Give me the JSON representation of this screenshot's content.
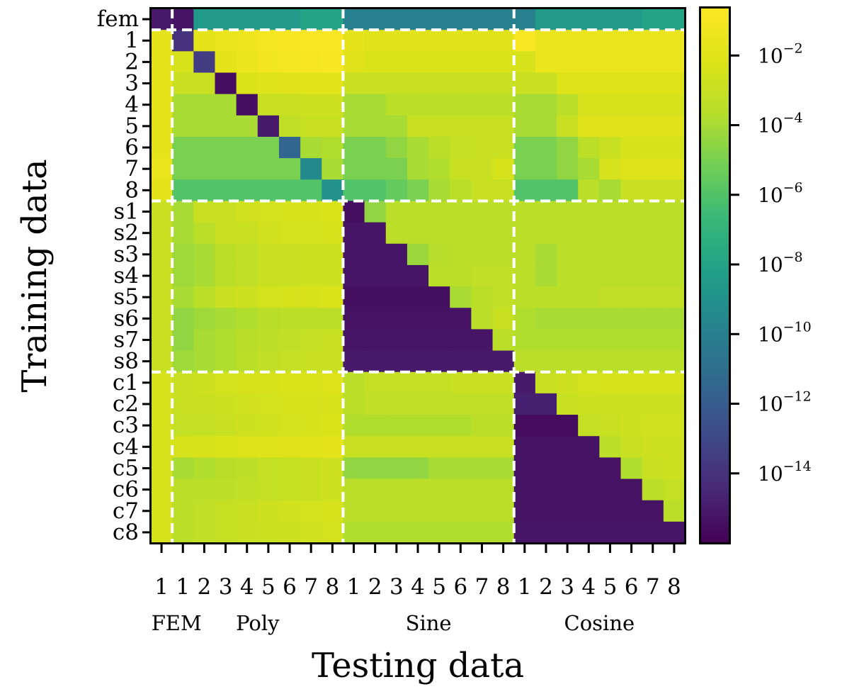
{
  "chart_data": {
    "type": "heatmap",
    "title": "",
    "xlabel": "Testing data",
    "ylabel": "Training data",
    "colormap": "viridis",
    "color_scale": "log10",
    "color_range_log10": [
      -16,
      -0.65
    ],
    "row_labels": [
      "fem",
      "1",
      "2",
      "3",
      "4",
      "5",
      "6",
      "7",
      "8",
      "s1",
      "s2",
      "s3",
      "s4",
      "s5",
      "s6",
      "s7",
      "s8",
      "c1",
      "c2",
      "c3",
      "c4",
      "c5",
      "c6",
      "c7",
      "c8"
    ],
    "col_tick_labels": [
      "1",
      "1",
      "2",
      "3",
      "4",
      "5",
      "6",
      "7",
      "8",
      "1",
      "2",
      "3",
      "4",
      "5",
      "6",
      "7",
      "8",
      "1",
      "2",
      "3",
      "4",
      "5",
      "6",
      "7",
      "8"
    ],
    "col_groups": [
      {
        "name": "FEM",
        "start": 0,
        "end": 0
      },
      {
        "name": "Poly",
        "start": 1,
        "end": 8
      },
      {
        "name": "Sine",
        "start": 9,
        "end": 16
      },
      {
        "name": "Cosine",
        "start": 17,
        "end": 24
      }
    ],
    "row_dividers_after": [
      0,
      8,
      16
    ],
    "col_dividers_after": [
      0,
      8,
      16
    ],
    "colorbar": {
      "ticks": [
        {
          "exp": "−2",
          "value": -2
        },
        {
          "exp": "−4",
          "value": -4
        },
        {
          "exp": "−6",
          "value": -6
        },
        {
          "exp": "−8",
          "value": -8
        },
        {
          "exp": "−10",
          "value": -10
        },
        {
          "exp": "−12",
          "value": -12
        },
        {
          "exp": "−14",
          "value": -14
        }
      ],
      "base": "10"
    },
    "values_log10": [
      [
        -15.0,
        -15.3,
        -8.5,
        -8.5,
        -8.5,
        -8.5,
        -8.5,
        -8.0,
        -8.0,
        -10.0,
        -10.0,
        -10.0,
        -10.0,
        -10.0,
        -10.0,
        -10.0,
        -10.0,
        -10.0,
        -8.5,
        -8.5,
        -8.5,
        -8.5,
        -8.5,
        -8.0,
        -8.0
      ],
      [
        -1.8,
        -14.0,
        -1.8,
        -1.5,
        -1.3,
        -1.1,
        -0.9,
        -0.8,
        -0.8,
        -1.8,
        -2.0,
        -2.0,
        -2.0,
        -2.0,
        -2.0,
        -2.0,
        -2.0,
        -0.8,
        -1.5,
        -1.5,
        -1.5,
        -1.5,
        -1.5,
        -1.5,
        -1.5
      ],
      [
        -1.8,
        -2.5,
        -13.5,
        -1.8,
        -1.5,
        -1.2,
        -1.1,
        -1.0,
        -0.9,
        -2.0,
        -2.3,
        -2.3,
        -2.3,
        -2.3,
        -2.3,
        -2.3,
        -2.3,
        -2.5,
        -1.5,
        -1.5,
        -1.5,
        -1.5,
        -1.5,
        -1.5,
        -1.5
      ],
      [
        -1.8,
        -3.0,
        -3.0,
        -15.5,
        -2.3,
        -2.1,
        -2.0,
        -1.9,
        -1.9,
        -3.0,
        -3.0,
        -3.0,
        -3.0,
        -3.0,
        -3.0,
        -3.0,
        -3.0,
        -3.0,
        -3.0,
        -2.2,
        -2.2,
        -2.2,
        -2.2,
        -2.2,
        -2.2
      ],
      [
        -1.8,
        -4.0,
        -4.0,
        -4.0,
        -15.5,
        -3.0,
        -3.0,
        -2.8,
        -2.8,
        -4.0,
        -4.0,
        -3.5,
        -3.5,
        -3.5,
        -3.5,
        -3.5,
        -3.5,
        -4.0,
        -4.0,
        -3.5,
        -2.5,
        -2.5,
        -2.5,
        -2.5,
        -2.5
      ],
      [
        -1.8,
        -4.0,
        -4.0,
        -4.0,
        -4.0,
        -15.0,
        -3.3,
        -3.0,
        -3.0,
        -4.0,
        -4.0,
        -4.0,
        -3.0,
        -3.0,
        -3.0,
        -3.0,
        -3.0,
        -4.0,
        -4.0,
        -3.0,
        -2.0,
        -2.0,
        -2.0,
        -2.0,
        -2.0
      ],
      [
        -1.8,
        -5.0,
        -5.0,
        -5.0,
        -5.0,
        -5.0,
        -11.5,
        -4.0,
        -3.8,
        -5.0,
        -5.0,
        -4.5,
        -4.0,
        -3.5,
        -3.2,
        -3.0,
        -3.0,
        -5.0,
        -5.0,
        -4.5,
        -3.5,
        -3.0,
        -2.5,
        -2.5,
        -2.5
      ],
      [
        -1.5,
        -5.0,
        -5.0,
        -5.0,
        -5.0,
        -5.0,
        -5.0,
        -9.5,
        -4.0,
        -5.0,
        -5.0,
        -5.0,
        -4.0,
        -3.8,
        -3.0,
        -3.0,
        -2.5,
        -5.0,
        -5.0,
        -4.5,
        -4.0,
        -2.5,
        -2.2,
        -2.0,
        -2.0
      ],
      [
        -1.8,
        -6.0,
        -6.0,
        -6.0,
        -6.0,
        -6.0,
        -6.0,
        -6.0,
        -9.0,
        -6.0,
        -6.0,
        -5.5,
        -5.0,
        -4.0,
        -3.5,
        -3.0,
        -3.0,
        -6.0,
        -6.0,
        -6.0,
        -3.5,
        -4.0,
        -3.0,
        -3.0,
        -3.0
      ],
      [
        -3.0,
        -4.0,
        -3.0,
        -3.0,
        -2.7,
        -2.6,
        -2.5,
        -2.5,
        -2.3,
        -15.5,
        -4.5,
        -3.5,
        -3.5,
        -3.5,
        -3.5,
        -3.5,
        -3.5,
        -3.5,
        -3.5,
        -3.5,
        -3.5,
        -3.5,
        -3.5,
        -3.5,
        -3.5
      ],
      [
        -3.0,
        -4.0,
        -3.5,
        -3.0,
        -3.0,
        -2.7,
        -2.6,
        -2.6,
        -2.5,
        -15.2,
        -15.2,
        -3.5,
        -3.5,
        -3.5,
        -3.5,
        -3.5,
        -3.5,
        -3.5,
        -3.5,
        -3.5,
        -3.5,
        -3.5,
        -3.5,
        -3.5,
        -3.5
      ],
      [
        -3.0,
        -4.2,
        -4.0,
        -3.5,
        -3.3,
        -3.0,
        -3.0,
        -2.8,
        -2.8,
        -15.2,
        -15.2,
        -15.2,
        -4.3,
        -3.7,
        -3.5,
        -3.5,
        -3.5,
        -3.5,
        -4.0,
        -3.5,
        -3.5,
        -3.5,
        -3.5,
        -3.5,
        -3.5
      ],
      [
        -3.0,
        -4.2,
        -4.0,
        -3.5,
        -3.3,
        -3.0,
        -3.0,
        -2.8,
        -2.8,
        -15.2,
        -15.2,
        -15.2,
        -15.2,
        -3.5,
        -3.5,
        -3.3,
        -3.3,
        -3.5,
        -4.0,
        -3.5,
        -3.5,
        -3.5,
        -3.5,
        -3.5,
        -3.5
      ],
      [
        -3.0,
        -4.0,
        -3.5,
        -3.0,
        -2.8,
        -2.6,
        -2.5,
        -2.4,
        -2.3,
        -15.4,
        -15.4,
        -15.4,
        -15.4,
        -15.4,
        -4.0,
        -3.5,
        -3.3,
        -3.5,
        -3.5,
        -3.5,
        -3.5,
        -3.3,
        -3.3,
        -3.3,
        -3.3
      ],
      [
        -3.0,
        -4.5,
        -4.2,
        -4.0,
        -3.8,
        -3.6,
        -3.5,
        -3.5,
        -3.5,
        -15.3,
        -15.3,
        -15.3,
        -15.3,
        -15.3,
        -15.3,
        -3.5,
        -3.0,
        -3.8,
        -4.0,
        -4.0,
        -4.0,
        -4.0,
        -4.0,
        -4.0,
        -4.0
      ],
      [
        -3.0,
        -4.5,
        -4.0,
        -3.8,
        -3.6,
        -3.4,
        -3.3,
        -3.2,
        -3.0,
        -15.2,
        -15.2,
        -15.2,
        -15.2,
        -15.2,
        -15.2,
        -15.2,
        -3.5,
        -3.8,
        -3.8,
        -3.8,
        -3.8,
        -3.8,
        -3.8,
        -3.8,
        -3.8
      ],
      [
        -3.0,
        -4.2,
        -4.0,
        -3.8,
        -3.5,
        -3.3,
        -3.2,
        -3.0,
        -3.0,
        -15.0,
        -15.0,
        -15.0,
        -15.0,
        -15.0,
        -15.0,
        -15.0,
        -15.0,
        -3.5,
        -3.5,
        -3.5,
        -3.5,
        -3.5,
        -3.5,
        -3.5,
        -3.5
      ],
      [
        -2.5,
        -3.0,
        -2.8,
        -2.6,
        -2.5,
        -2.4,
        -2.3,
        -2.3,
        -2.2,
        -3.5,
        -3.2,
        -3.2,
        -3.2,
        -3.2,
        -3.0,
        -3.0,
        -3.0,
        -15.0,
        -3.0,
        -2.8,
        -2.6,
        -2.5,
        -2.5,
        -2.5,
        -2.5
      ],
      [
        -2.5,
        -3.0,
        -3.0,
        -2.8,
        -2.7,
        -2.6,
        -2.5,
        -2.5,
        -2.4,
        -3.5,
        -3.3,
        -3.3,
        -3.3,
        -3.3,
        -3.3,
        -3.3,
        -3.3,
        -14.8,
        -14.8,
        -3.0,
        -2.8,
        -2.8,
        -2.8,
        -2.8,
        -2.8
      ],
      [
        -2.5,
        -3.2,
        -3.2,
        -3.0,
        -2.8,
        -2.7,
        -2.6,
        -2.5,
        -2.3,
        -3.8,
        -3.8,
        -3.8,
        -3.8,
        -3.8,
        -3.8,
        -3.5,
        -3.5,
        -15.6,
        -15.6,
        -15.6,
        -3.2,
        -3.0,
        -2.8,
        -2.7,
        -2.7
      ],
      [
        -2.5,
        -2.5,
        -2.4,
        -2.3,
        -2.2,
        -2.1,
        -2.0,
        -1.9,
        -1.8,
        -3.0,
        -3.0,
        -3.0,
        -3.0,
        -3.0,
        -3.0,
        -3.0,
        -3.0,
        -15.3,
        -15.3,
        -15.3,
        -15.3,
        -3.5,
        -3.0,
        -2.8,
        -2.8
      ],
      [
        -2.5,
        -4.0,
        -3.8,
        -3.6,
        -3.4,
        -3.2,
        -3.1,
        -3.0,
        -2.8,
        -4.5,
        -4.5,
        -4.5,
        -4.5,
        -4.0,
        -4.0,
        -4.0,
        -4.0,
        -15.3,
        -15.3,
        -15.3,
        -15.3,
        -15.3,
        -3.8,
        -3.0,
        -2.8
      ],
      [
        -2.5,
        -3.5,
        -3.5,
        -3.4,
        -3.3,
        -3.2,
        -3.1,
        -3.0,
        -2.8,
        -3.5,
        -3.5,
        -3.5,
        -3.5,
        -3.5,
        -3.5,
        -3.5,
        -3.5,
        -15.3,
        -15.3,
        -15.3,
        -15.3,
        -15.3,
        -15.3,
        -3.5,
        -3.2
      ],
      [
        -2.5,
        -3.5,
        -3.3,
        -3.1,
        -3.0,
        -2.8,
        -2.7,
        -2.6,
        -2.5,
        -3.5,
        -3.5,
        -3.5,
        -3.5,
        -3.5,
        -3.5,
        -3.5,
        -3.5,
        -15.3,
        -15.3,
        -15.3,
        -15.3,
        -15.3,
        -15.3,
        -15.3,
        -3.5
      ],
      [
        -2.5,
        -3.5,
        -3.3,
        -3.1,
        -3.0,
        -2.9,
        -2.8,
        -2.7,
        -2.6,
        -3.8,
        -3.8,
        -3.8,
        -3.8,
        -3.8,
        -3.8,
        -3.8,
        -3.8,
        -15.2,
        -15.2,
        -15.2,
        -15.2,
        -15.2,
        -15.2,
        -15.2,
        -15.2
      ]
    ]
  }
}
